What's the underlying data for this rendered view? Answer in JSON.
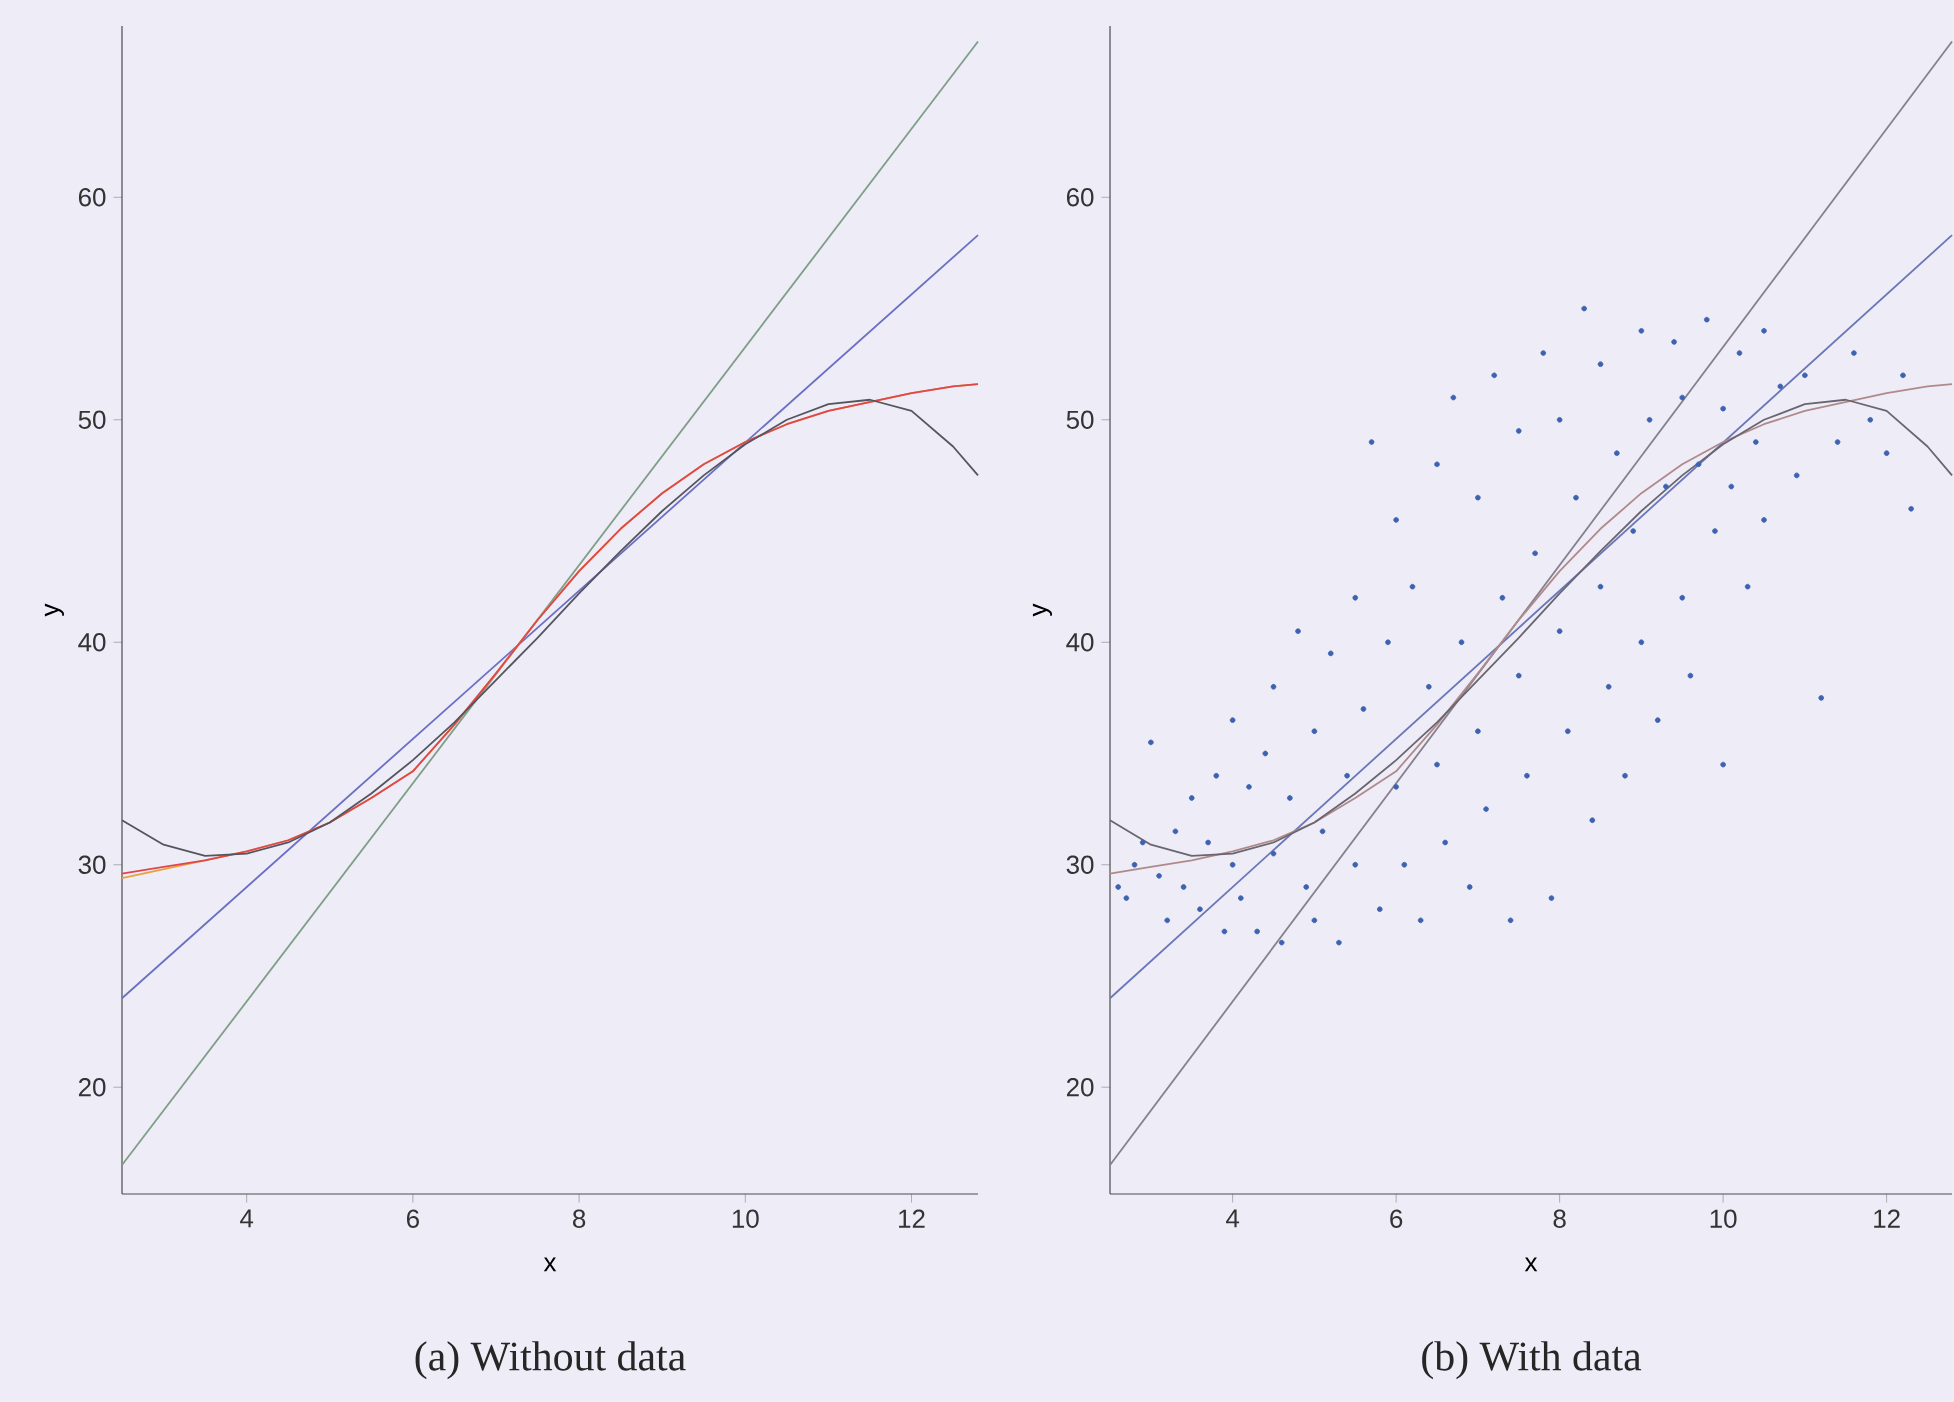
{
  "chart_data": [
    {
      "type": "line",
      "xlabel": "x",
      "ylabel": "y",
      "annotations": [
        "(a) Without data"
      ],
      "xlim": [
        2.5,
        12.8
      ],
      "ylim": [
        15.2,
        67.7
      ],
      "xticks": [
        4,
        6,
        8,
        10,
        12
      ],
      "yticks": [
        20,
        30,
        40,
        50,
        60
      ],
      "grid": false,
      "series": [
        {
          "type": "line",
          "color": "#7f9e86",
          "x": [
            2.5,
            12.8
          ],
          "values": [
            16.5,
            67.0
          ]
        },
        {
          "type": "line",
          "color": "#6b6fc4",
          "x": [
            2.5,
            12.8
          ],
          "values": [
            24.0,
            58.3
          ]
        },
        {
          "type": "line",
          "color": "#e6a23c",
          "x": [
            2.5,
            3,
            3.5,
            4,
            4.5,
            5,
            5.5,
            6,
            6.5,
            7,
            7.5,
            8,
            8.5,
            9,
            9.5,
            10,
            10.5,
            11,
            11.5,
            12,
            12.5,
            12.8
          ],
          "values": [
            29.4,
            29.8,
            30.2,
            30.6,
            31.1,
            31.9,
            33.0,
            34.2,
            36.3,
            38.6,
            41.0,
            43.2,
            45.1,
            46.7,
            48.0,
            49.0,
            49.8,
            50.4,
            50.8,
            51.2,
            51.5,
            51.6
          ]
        },
        {
          "type": "line",
          "color": "#e0474c",
          "x": [
            2.5,
            3,
            3.5,
            4,
            4.5,
            5,
            5.5,
            6,
            6.5,
            7,
            7.5,
            8,
            8.5,
            9,
            9.5,
            10,
            10.5,
            11,
            11.5,
            12,
            12.5,
            12.8
          ],
          "values": [
            29.6,
            29.9,
            30.2,
            30.6,
            31.1,
            31.9,
            33.0,
            34.2,
            36.3,
            38.6,
            41.0,
            43.2,
            45.1,
            46.7,
            48.0,
            49.0,
            49.8,
            50.4,
            50.8,
            51.2,
            51.5,
            51.6
          ]
        },
        {
          "type": "line",
          "color": "#55555f",
          "x": [
            2.5,
            3,
            3.5,
            4,
            4.5,
            5,
            5.5,
            6,
            6.5,
            7,
            7.5,
            8,
            8.5,
            9,
            9.5,
            10,
            10.5,
            11,
            11.5,
            12,
            12.5,
            12.8
          ],
          "values": [
            32.0,
            30.9,
            30.4,
            30.5,
            31.0,
            31.9,
            33.2,
            34.7,
            36.4,
            38.3,
            40.2,
            42.2,
            44.1,
            45.9,
            47.5,
            48.9,
            50.0,
            50.7,
            50.9,
            50.4,
            48.8,
            47.5
          ]
        }
      ]
    },
    {
      "type": "line",
      "xlabel": "x",
      "ylabel": "y",
      "annotations": [
        "(b) With data"
      ],
      "xlim": [
        2.5,
        12.8
      ],
      "ylim": [
        15.2,
        67.7
      ],
      "xticks": [
        4,
        6,
        8,
        10,
        12
      ],
      "yticks": [
        20,
        30,
        40,
        50,
        60
      ],
      "grid": false,
      "series": [
        {
          "type": "scatter",
          "marker": "circle",
          "color": "#3d62b0",
          "x": [
            2.6,
            2.7,
            2.8,
            2.9,
            3.0,
            3.1,
            3.2,
            3.3,
            3.4,
            3.5,
            3.6,
            3.7,
            3.8,
            3.9,
            4.0,
            4.0,
            4.1,
            4.2,
            4.3,
            4.4,
            4.5,
            4.5,
            4.6,
            4.7,
            4.8,
            4.9,
            5.0,
            5.0,
            5.1,
            5.2,
            5.3,
            5.4,
            5.5,
            5.5,
            5.6,
            5.7,
            5.8,
            5.9,
            6.0,
            6.0,
            6.1,
            6.2,
            6.3,
            6.4,
            6.5,
            6.5,
            6.6,
            6.7,
            6.8,
            6.9,
            7.0,
            7.0,
            7.1,
            7.2,
            7.3,
            7.4,
            7.5,
            7.5,
            7.6,
            7.7,
            7.8,
            7.9,
            8.0,
            8.0,
            8.1,
            8.2,
            8.3,
            8.4,
            8.5,
            8.5,
            8.6,
            8.7,
            8.8,
            8.9,
            9.0,
            9.0,
            9.1,
            9.2,
            9.3,
            9.4,
            9.5,
            9.5,
            9.6,
            9.7,
            9.8,
            9.9,
            10.0,
            10.0,
            10.1,
            10.2,
            10.3,
            10.4,
            10.5,
            10.5,
            10.7,
            10.9,
            11.0,
            11.2,
            11.4,
            11.6,
            11.8,
            12.0,
            12.2,
            12.3
          ],
          "values": [
            29.0,
            28.5,
            30.0,
            31.0,
            35.5,
            29.5,
            27.5,
            31.5,
            29.0,
            33.0,
            28.0,
            31.0,
            34.0,
            27.0,
            30.0,
            36.5,
            28.5,
            33.5,
            27.0,
            35.0,
            30.5,
            38.0,
            26.5,
            33.0,
            40.5,
            29.0,
            27.5,
            36.0,
            31.5,
            39.5,
            26.5,
            34.0,
            30.0,
            42.0,
            37.0,
            49.0,
            28.0,
            40.0,
            33.5,
            45.5,
            30.0,
            42.5,
            27.5,
            38.0,
            34.5,
            48.0,
            31.0,
            51.0,
            40.0,
            29.0,
            36.0,
            46.5,
            32.5,
            52.0,
            42.0,
            27.5,
            38.5,
            49.5,
            34.0,
            44.0,
            53.0,
            28.5,
            40.5,
            50.0,
            36.0,
            46.5,
            55.0,
            32.0,
            42.5,
            52.5,
            38.0,
            48.5,
            34.0,
            45.0,
            54.0,
            40.0,
            50.0,
            36.5,
            47.0,
            53.5,
            42.0,
            51.0,
            38.5,
            48.0,
            54.5,
            45.0,
            50.5,
            34.5,
            47.0,
            53.0,
            42.5,
            49.0,
            54.0,
            45.5,
            51.5,
            47.5,
            52.0,
            37.5,
            49.0,
            53.0,
            50.0,
            48.5,
            52.0,
            46.0
          ]
        },
        {
          "type": "line",
          "color": "#85808f",
          "x": [
            2.5,
            12.8
          ],
          "values": [
            16.5,
            67.0
          ]
        },
        {
          "type": "line",
          "color": "#6a76b8",
          "x": [
            2.5,
            12.8
          ],
          "values": [
            24.0,
            58.3
          ]
        },
        {
          "type": "line",
          "color": "#b08a8a",
          "x": [
            2.5,
            3,
            3.5,
            4,
            4.5,
            5,
            5.5,
            6,
            6.5,
            7,
            7.5,
            8,
            8.5,
            9,
            9.5,
            10,
            10.5,
            11,
            11.5,
            12,
            12.5,
            12.8
          ],
          "values": [
            29.6,
            29.9,
            30.2,
            30.6,
            31.1,
            31.9,
            33.0,
            34.2,
            36.3,
            38.6,
            41.0,
            43.2,
            45.1,
            46.7,
            48.0,
            49.0,
            49.8,
            50.4,
            50.8,
            51.2,
            51.5,
            51.6
          ]
        },
        {
          "type": "line",
          "color": "#6a6570",
          "x": [
            2.5,
            3,
            3.5,
            4,
            4.5,
            5,
            5.5,
            6,
            6.5,
            7,
            7.5,
            8,
            8.5,
            9,
            9.5,
            10,
            10.5,
            11,
            11.5,
            12,
            12.5,
            12.8
          ],
          "values": [
            32.0,
            30.9,
            30.4,
            30.5,
            31.0,
            31.9,
            33.2,
            34.7,
            36.4,
            38.3,
            40.2,
            42.2,
            44.1,
            45.9,
            47.5,
            48.9,
            50.0,
            50.7,
            50.9,
            50.4,
            48.8,
            47.5
          ]
        }
      ]
    }
  ]
}
